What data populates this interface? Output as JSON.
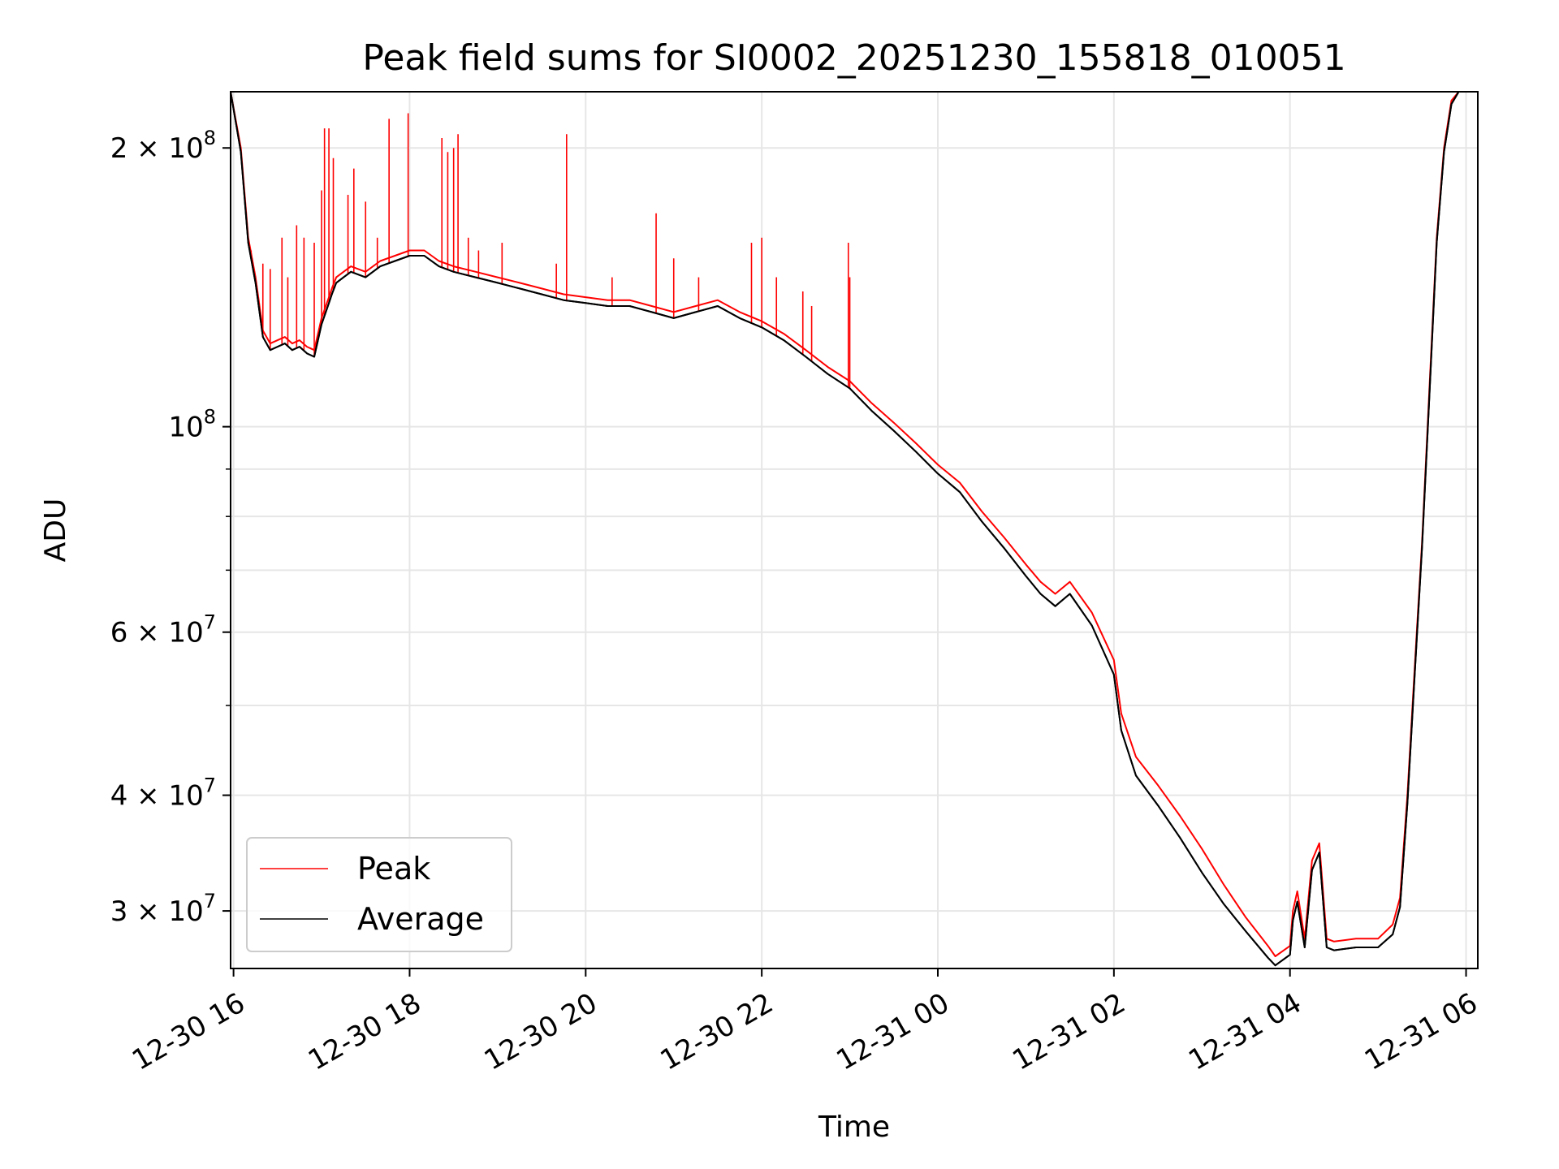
{
  "chart_data": {
    "type": "line",
    "title": "Peak field sums for SI0002_20251230_155818_010051",
    "xlabel": "Time",
    "ylabel": "ADU",
    "y_scale": "log",
    "ylim": [
      26000000,
      230000000
    ],
    "xlim": [
      "2025-12-30 15:58",
      "2025-12-31 06:08"
    ],
    "grid": true,
    "legend_position": "lower-left",
    "x_ticks": [
      {
        "t": "2025-12-30 16:00",
        "label": "12-30 16"
      },
      {
        "t": "2025-12-30 18:00",
        "label": "12-30 18"
      },
      {
        "t": "2025-12-30 20:00",
        "label": "12-30 20"
      },
      {
        "t": "2025-12-30 22:00",
        "label": "12-30 22"
      },
      {
        "t": "2025-12-31 00:00",
        "label": "12-31 00"
      },
      {
        "t": "2025-12-31 02:00",
        "label": "12-31 02"
      },
      {
        "t": "2025-12-31 04:00",
        "label": "12-31 04"
      },
      {
        "t": "2025-12-31 06:00",
        "label": "12-31 06"
      }
    ],
    "y_ticks": [
      {
        "v": 30000000,
        "mantissa": "3",
        "exp": "7"
      },
      {
        "v": 40000000,
        "mantissa": "4",
        "exp": "7"
      },
      {
        "v": 60000000,
        "mantissa": "6",
        "exp": "7"
      },
      {
        "v": 100000000,
        "mantissa": "",
        "exp": "8"
      },
      {
        "v": 200000000,
        "mantissa": "2",
        "exp": "8"
      }
    ],
    "series": [
      {
        "name": "Peak",
        "color": "#ff0000",
        "x": [
          "2025-12-30 15:58",
          "2025-12-30 16:05",
          "2025-12-30 16:10",
          "2025-12-30 16:15",
          "2025-12-30 16:20",
          "2025-12-30 16:25",
          "2025-12-30 16:30",
          "2025-12-30 16:35",
          "2025-12-30 16:40",
          "2025-12-30 16:45",
          "2025-12-30 16:50",
          "2025-12-30 16:55",
          "2025-12-30 17:00",
          "2025-12-30 17:05",
          "2025-12-30 17:07",
          "2025-12-30 17:10",
          "2025-12-30 17:15",
          "2025-12-30 17:20",
          "2025-12-30 17:30",
          "2025-12-30 17:40",
          "2025-12-30 17:50",
          "2025-12-30 18:00",
          "2025-12-30 18:10",
          "2025-12-30 18:20",
          "2025-12-30 18:30",
          "2025-12-30 18:45",
          "2025-12-30 19:00",
          "2025-12-30 19:15",
          "2025-12-30 19:30",
          "2025-12-30 19:45",
          "2025-12-30 20:00",
          "2025-12-30 20:15",
          "2025-12-30 20:30",
          "2025-12-30 20:45",
          "2025-12-30 21:00",
          "2025-12-30 21:15",
          "2025-12-30 21:30",
          "2025-12-30 21:45",
          "2025-12-30 22:00",
          "2025-12-30 22:15",
          "2025-12-30 22:30",
          "2025-12-30 22:45",
          "2025-12-30 23:00",
          "2025-12-30 23:15",
          "2025-12-30 23:30",
          "2025-12-30 23:45",
          "2025-12-31 00:00",
          "2025-12-31 00:15",
          "2025-12-31 00:30",
          "2025-12-31 00:45",
          "2025-12-31 01:00",
          "2025-12-31 01:10",
          "2025-12-31 01:20",
          "2025-12-31 01:30",
          "2025-12-31 01:45",
          "2025-12-31 02:00",
          "2025-12-31 02:05",
          "2025-12-31 02:15",
          "2025-12-31 02:30",
          "2025-12-31 02:45",
          "2025-12-31 03:00",
          "2025-12-31 03:15",
          "2025-12-31 03:30",
          "2025-12-31 03:45",
          "2025-12-31 03:50",
          "2025-12-31 04:00",
          "2025-12-31 04:02",
          "2025-12-31 04:05",
          "2025-12-31 04:10",
          "2025-12-31 04:15",
          "2025-12-31 04:20",
          "2025-12-31 04:25",
          "2025-12-31 04:30",
          "2025-12-31 04:45",
          "2025-12-31 05:00",
          "2025-12-31 05:10",
          "2025-12-31 05:15",
          "2025-12-31 05:20",
          "2025-12-31 05:25",
          "2025-12-31 05:30",
          "2025-12-31 05:35",
          "2025-12-31 05:40",
          "2025-12-31 05:45",
          "2025-12-31 05:50",
          "2025-12-31 05:55",
          "2025-12-31 06:00"
        ],
        "y": [
          230000000,
          200000000,
          160000000,
          145000000,
          127000000,
          123000000,
          124000000,
          125000000,
          123000000,
          124000000,
          122000000,
          121000000,
          131000000,
          138000000,
          141000000,
          145000000,
          147000000,
          149000000,
          147000000,
          151000000,
          153000000,
          155000000,
          155000000,
          151000000,
          149000000,
          147000000,
          145000000,
          143000000,
          141000000,
          139000000,
          138000000,
          137000000,
          137000000,
          135000000,
          133000000,
          135000000,
          137000000,
          133000000,
          130000000,
          126000000,
          121000000,
          116000000,
          112000000,
          106000000,
          101000000,
          96000000,
          91000000,
          87000000,
          81000000,
          76000000,
          71000000,
          68000000,
          66000000,
          68000000,
          63000000,
          56000000,
          49000000,
          44000000,
          41000000,
          38000000,
          35000000,
          32000000,
          29500000,
          27500000,
          26800000,
          27500000,
          30000000,
          31500000,
          28000000,
          34000000,
          35500000,
          28000000,
          27800000,
          28000000,
          28000000,
          29000000,
          31000000,
          40000000,
          55000000,
          75000000,
          110000000,
          160000000,
          200000000,
          225000000,
          230000000,
          230000000
        ]
      },
      {
        "name": "Average",
        "color": "#000000",
        "x": [
          "2025-12-30 15:58",
          "2025-12-30 16:05",
          "2025-12-30 16:10",
          "2025-12-30 16:15",
          "2025-12-30 16:20",
          "2025-12-30 16:25",
          "2025-12-30 16:30",
          "2025-12-30 16:35",
          "2025-12-30 16:40",
          "2025-12-30 16:45",
          "2025-12-30 16:50",
          "2025-12-30 16:55",
          "2025-12-30 17:00",
          "2025-12-30 17:05",
          "2025-12-30 17:07",
          "2025-12-30 17:10",
          "2025-12-30 17:15",
          "2025-12-30 17:20",
          "2025-12-30 17:30",
          "2025-12-30 17:40",
          "2025-12-30 17:50",
          "2025-12-30 18:00",
          "2025-12-30 18:10",
          "2025-12-30 18:20",
          "2025-12-30 18:30",
          "2025-12-30 18:45",
          "2025-12-30 19:00",
          "2025-12-30 19:15",
          "2025-12-30 19:30",
          "2025-12-30 19:45",
          "2025-12-30 20:00",
          "2025-12-30 20:15",
          "2025-12-30 20:30",
          "2025-12-30 20:45",
          "2025-12-30 21:00",
          "2025-12-30 21:15",
          "2025-12-30 21:30",
          "2025-12-30 21:45",
          "2025-12-30 22:00",
          "2025-12-30 22:15",
          "2025-12-30 22:30",
          "2025-12-30 22:45",
          "2025-12-30 23:00",
          "2025-12-30 23:15",
          "2025-12-30 23:30",
          "2025-12-30 23:45",
          "2025-12-31 00:00",
          "2025-12-31 00:15",
          "2025-12-31 00:30",
          "2025-12-31 00:45",
          "2025-12-31 01:00",
          "2025-12-31 01:10",
          "2025-12-31 01:20",
          "2025-12-31 01:30",
          "2025-12-31 01:45",
          "2025-12-31 02:00",
          "2025-12-31 02:05",
          "2025-12-31 02:15",
          "2025-12-31 02:30",
          "2025-12-31 02:45",
          "2025-12-31 03:00",
          "2025-12-31 03:15",
          "2025-12-31 03:30",
          "2025-12-31 03:45",
          "2025-12-31 03:50",
          "2025-12-31 04:00",
          "2025-12-31 04:02",
          "2025-12-31 04:05",
          "2025-12-31 04:10",
          "2025-12-31 04:15",
          "2025-12-31 04:20",
          "2025-12-31 04:25",
          "2025-12-31 04:30",
          "2025-12-31 04:45",
          "2025-12-31 05:00",
          "2025-12-31 05:10",
          "2025-12-31 05:15",
          "2025-12-31 05:20",
          "2025-12-31 05:25",
          "2025-12-31 05:30",
          "2025-12-31 05:35",
          "2025-12-31 05:40",
          "2025-12-31 05:45",
          "2025-12-31 05:50",
          "2025-12-31 05:55",
          "2025-12-31 06:00"
        ],
        "y": [
          230000000,
          198000000,
          158000000,
          143000000,
          125000000,
          121000000,
          122000000,
          123000000,
          121000000,
          122000000,
          120000000,
          119000000,
          129000000,
          136000000,
          139000000,
          143000000,
          145000000,
          147000000,
          145000000,
          149000000,
          151000000,
          153000000,
          153000000,
          149000000,
          147000000,
          145000000,
          143000000,
          141000000,
          139000000,
          137000000,
          136000000,
          135000000,
          135000000,
          133000000,
          131000000,
          133000000,
          135000000,
          131000000,
          128000000,
          124000000,
          119000000,
          114000000,
          110000000,
          104000000,
          99000000,
          94000000,
          89000000,
          85000000,
          79000000,
          74000000,
          69000000,
          66000000,
          64000000,
          66000000,
          61000000,
          54000000,
          47000000,
          42000000,
          39000000,
          36000000,
          33000000,
          30500000,
          28500000,
          26700000,
          26200000,
          26900000,
          29300000,
          30700000,
          27400000,
          33200000,
          34700000,
          27400000,
          27200000,
          27400000,
          27400000,
          28300000,
          30300000,
          39200000,
          54000000,
          74000000,
          108000000,
          158000000,
          198000000,
          223000000,
          230000000,
          230000000
        ]
      }
    ],
    "peak_spikes": [
      {
        "x": "2025-12-30 16:12",
        "y": 155000000
      },
      {
        "x": "2025-12-30 16:20",
        "y": 150000000
      },
      {
        "x": "2025-12-30 16:25",
        "y": 148000000
      },
      {
        "x": "2025-12-30 16:33",
        "y": 160000000
      },
      {
        "x": "2025-12-30 16:37",
        "y": 145000000
      },
      {
        "x": "2025-12-30 16:43",
        "y": 165000000
      },
      {
        "x": "2025-12-30 16:48",
        "y": 160000000
      },
      {
        "x": "2025-12-30 16:55",
        "y": 158000000
      },
      {
        "x": "2025-12-30 17:00",
        "y": 180000000
      },
      {
        "x": "2025-12-30 17:02",
        "y": 210000000
      },
      {
        "x": "2025-12-30 17:05",
        "y": 210000000
      },
      {
        "x": "2025-12-30 17:08",
        "y": 195000000
      },
      {
        "x": "2025-12-30 17:18",
        "y": 178000000
      },
      {
        "x": "2025-12-30 17:22",
        "y": 190000000
      },
      {
        "x": "2025-12-30 17:30",
        "y": 175000000
      },
      {
        "x": "2025-12-30 17:38",
        "y": 160000000
      },
      {
        "x": "2025-12-30 17:46",
        "y": 215000000
      },
      {
        "x": "2025-12-30 17:59",
        "y": 218000000
      },
      {
        "x": "2025-12-30 18:22",
        "y": 205000000
      },
      {
        "x": "2025-12-30 18:26",
        "y": 198000000
      },
      {
        "x": "2025-12-30 18:30",
        "y": 200000000
      },
      {
        "x": "2025-12-30 18:33",
        "y": 207000000
      },
      {
        "x": "2025-12-30 18:40",
        "y": 160000000
      },
      {
        "x": "2025-12-30 18:47",
        "y": 155000000
      },
      {
        "x": "2025-12-30 19:03",
        "y": 158000000
      },
      {
        "x": "2025-12-30 19:40",
        "y": 150000000
      },
      {
        "x": "2025-12-30 19:47",
        "y": 207000000
      },
      {
        "x": "2025-12-30 20:18",
        "y": 145000000
      },
      {
        "x": "2025-12-30 20:48",
        "y": 170000000
      },
      {
        "x": "2025-12-30 21:00",
        "y": 152000000
      },
      {
        "x": "2025-12-30 21:17",
        "y": 145000000
      },
      {
        "x": "2025-12-30 21:53",
        "y": 158000000
      },
      {
        "x": "2025-12-30 22:00",
        "y": 160000000
      },
      {
        "x": "2025-12-30 22:10",
        "y": 145000000
      },
      {
        "x": "2025-12-30 22:28",
        "y": 140000000
      },
      {
        "x": "2025-12-30 22:34",
        "y": 135000000
      },
      {
        "x": "2025-12-30 22:59",
        "y": 158000000
      },
      {
        "x": "2025-12-30 23:00",
        "y": 145000000
      }
    ]
  }
}
